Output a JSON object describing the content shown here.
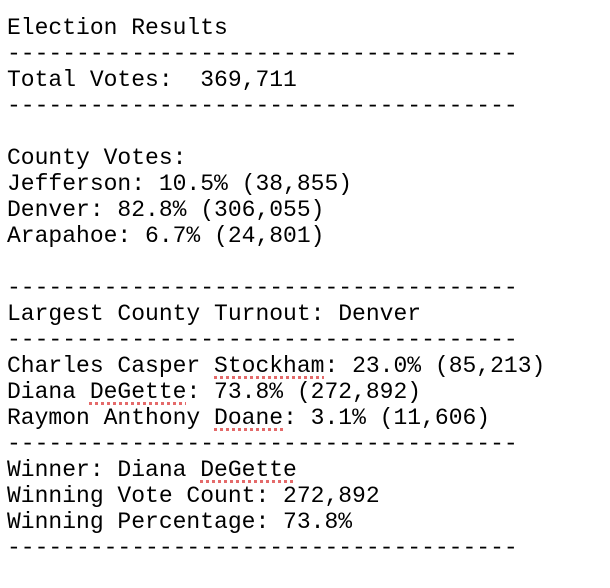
{
  "blocks": [
    [
      "Election Results",
      "-------------------------------------",
      "Total Votes:  369,711",
      "-------------------------------------"
    ],
    [
      "County Votes:",
      "Jefferson: 10.5% (38,855)",
      "Denver: 82.8% (306,055)",
      "Arapahoe: 6.7% (24,801)"
    ],
    [
      "-------------------------------------",
      "Largest County Turnout: Denver",
      "-------------------------------------",
      [
        "Charles Casper ",
        {
          "text": "Stockham",
          "flagged": true
        },
        ": 23.0% (85,213)"
      ],
      [
        "Diana ",
        {
          "text": "DeGette",
          "flagged": true
        },
        ": 73.8% (272,892)"
      ],
      [
        "Raymon Anthony ",
        {
          "text": "Doane",
          "flagged": true
        },
        ": 3.1% (11,606)"
      ],
      "-------------------------------------",
      [
        "Winner: Diana ",
        {
          "text": "DeGette",
          "flagged": true
        }
      ],
      "Winning Vote Count: 272,892",
      "Winning Percentage: 73.8%",
      "-------------------------------------"
    ]
  ]
}
